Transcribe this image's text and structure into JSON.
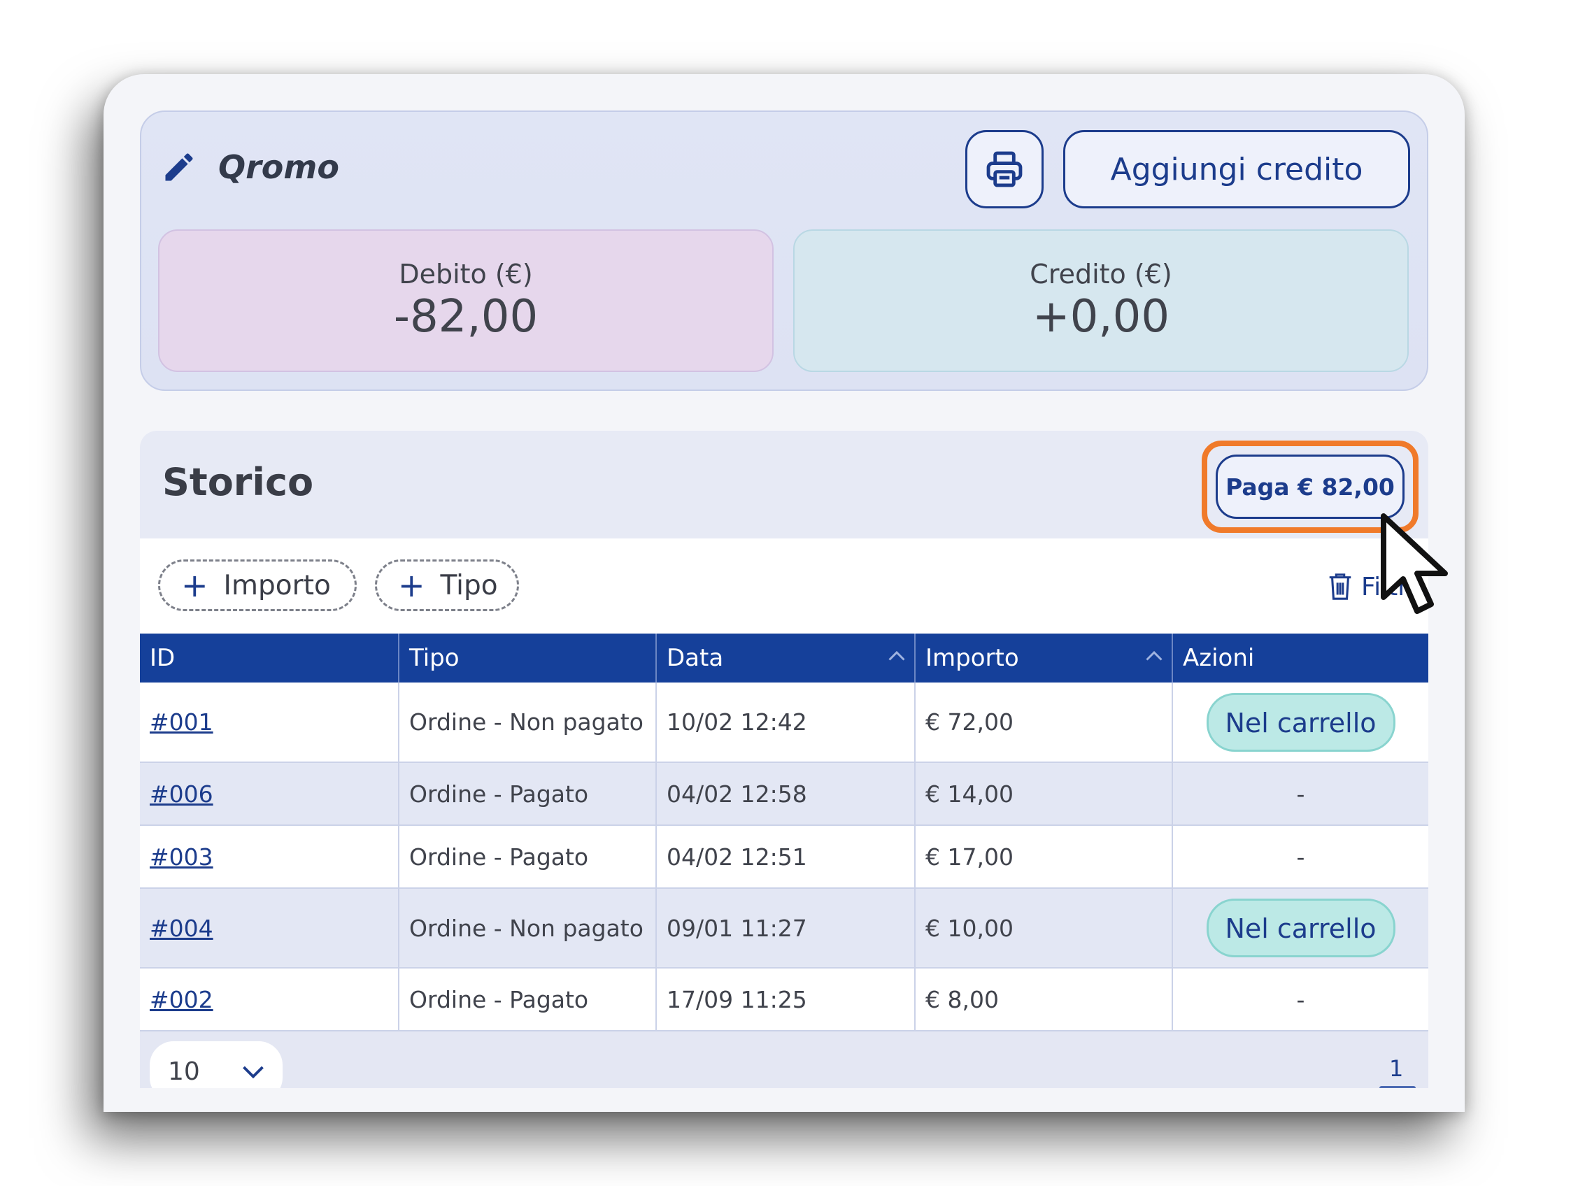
{
  "account": {
    "name": "Qromo",
    "add_credit_label": "Aggiungi credito",
    "debit_label": "Debito (€)",
    "debit_value": "-82,00",
    "credit_label": "Credito (€)",
    "credit_value": "+0,00"
  },
  "history": {
    "title": "Storico",
    "pay_label": "Paga € 82,00",
    "filters": [
      {
        "label": "Importo"
      },
      {
        "label": "Tipo"
      }
    ],
    "clear_filters_label": "Filtri",
    "columns": [
      "ID",
      "Tipo",
      "Data",
      "Importo",
      "Azioni"
    ],
    "rows": [
      {
        "id": "#001",
        "tipo": "Ordine - Non pagato",
        "data": "10/02 12:42",
        "importo": "€ 72,00",
        "azione": "Nel carrello"
      },
      {
        "id": "#006",
        "tipo": "Ordine - Pagato",
        "data": "04/02 12:58",
        "importo": "€ 14,00",
        "azione": "-"
      },
      {
        "id": "#003",
        "tipo": "Ordine - Pagato",
        "data": "04/02 12:51",
        "importo": "€ 17,00",
        "azione": "-"
      },
      {
        "id": "#004",
        "tipo": "Ordine - Non pagato",
        "data": "09/01 11:27",
        "importo": "€ 10,00",
        "azione": "Nel carrello"
      },
      {
        "id": "#002",
        "tipo": "Ordine - Pagato",
        "data": "17/09 11:25",
        "importo": "€ 8,00",
        "azione": "-"
      }
    ],
    "page_size": "10",
    "current_page": "1"
  },
  "colors": {
    "primary": "#1c3c8c",
    "table_header": "#15409a",
    "highlight": "#f07a2a",
    "cart_button": "#bce9e6",
    "debit_card": "#e6d7ec",
    "credit_card": "#d6e7ef"
  },
  "icons": {
    "edit": "pencil-icon",
    "print": "printer-icon",
    "add": "plus-icon",
    "clear": "trash-icon",
    "sort": "chevron-up-icon",
    "dropdown": "chevron-down-icon",
    "pointer": "mouse-cursor"
  }
}
